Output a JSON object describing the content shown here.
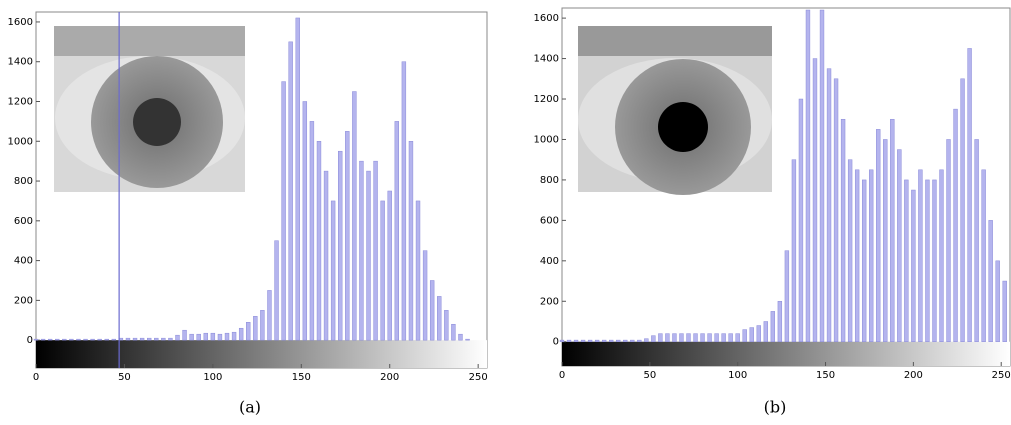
{
  "chart_data": [
    {
      "type": "bar",
      "caption": "(a)",
      "color": "#b4b4ee",
      "marker_x": 47,
      "x": [
        0,
        4,
        8,
        12,
        16,
        20,
        24,
        28,
        32,
        36,
        40,
        44,
        48,
        52,
        56,
        60,
        64,
        68,
        72,
        76,
        80,
        84,
        88,
        92,
        96,
        100,
        104,
        108,
        112,
        116,
        120,
        124,
        128,
        132,
        136,
        140,
        144,
        148,
        152,
        156,
        160,
        164,
        168,
        172,
        176,
        180,
        184,
        188,
        192,
        196,
        200,
        204,
        208,
        212,
        216,
        220,
        224,
        228,
        232,
        236,
        240,
        244
      ],
      "values": [
        5,
        5,
        5,
        5,
        5,
        5,
        5,
        5,
        5,
        5,
        5,
        5,
        10,
        10,
        10,
        10,
        10,
        10,
        10,
        10,
        25,
        50,
        30,
        30,
        35,
        35,
        30,
        35,
        40,
        60,
        90,
        120,
        150,
        250,
        500,
        1300,
        1500,
        1620,
        1200,
        1100,
        1000,
        850,
        700,
        950,
        1050,
        1250,
        900,
        850,
        900,
        700,
        750,
        1100,
        1400,
        1000,
        700,
        450,
        300,
        220,
        150,
        80,
        30,
        5
      ],
      "xlim": [
        0,
        255
      ],
      "xticks": [
        0,
        50,
        100,
        150,
        200,
        250
      ],
      "ylim": [
        -140,
        1650
      ],
      "yticks": [
        0,
        200,
        400,
        600,
        800,
        1000,
        1200,
        1400,
        1600
      ]
    },
    {
      "type": "bar",
      "caption": "(b)",
      "color": "#b4b4ee",
      "x": [
        0,
        4,
        8,
        12,
        16,
        20,
        24,
        28,
        32,
        36,
        40,
        44,
        48,
        52,
        56,
        60,
        64,
        68,
        72,
        76,
        80,
        84,
        88,
        92,
        96,
        100,
        104,
        108,
        112,
        116,
        120,
        124,
        128,
        132,
        136,
        140,
        144,
        148,
        152,
        156,
        160,
        164,
        168,
        172,
        176,
        180,
        184,
        188,
        192,
        196,
        200,
        204,
        208,
        212,
        216,
        220,
        224,
        228,
        232,
        236,
        240,
        244,
        248,
        252
      ],
      "values": [
        8,
        8,
        8,
        8,
        8,
        8,
        8,
        8,
        8,
        8,
        8,
        8,
        15,
        30,
        40,
        40,
        40,
        40,
        40,
        40,
        40,
        40,
        40,
        40,
        40,
        40,
        60,
        70,
        80,
        100,
        150,
        200,
        450,
        900,
        1200,
        1640,
        1400,
        1640,
        1350,
        1300,
        1100,
        900,
        850,
        800,
        850,
        1050,
        1000,
        1100,
        950,
        800,
        750,
        850,
        800,
        800,
        850,
        1000,
        1150,
        1300,
        1450,
        1000,
        850,
        600,
        400,
        300
      ],
      "xlim": [
        0,
        255
      ],
      "xticks": [
        0,
        50,
        100,
        150,
        200,
        250
      ],
      "ylim": [
        -120,
        1650
      ],
      "yticks": [
        0,
        200,
        400,
        600,
        800,
        1000,
        1200,
        1400,
        1600
      ]
    }
  ]
}
